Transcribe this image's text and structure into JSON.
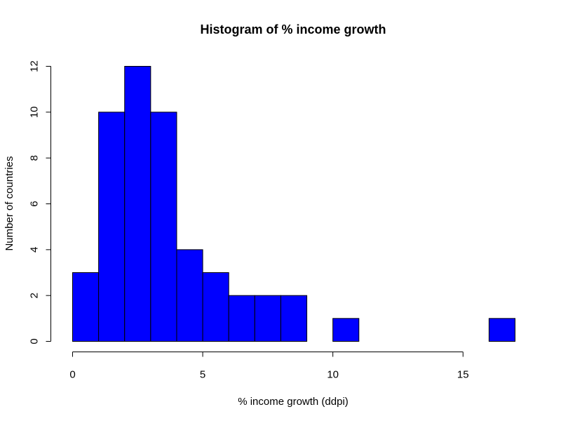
{
  "chart_data": {
    "type": "bar",
    "title": "Histogram of % income growth",
    "xlabel": "% income growth (ddpi)",
    "ylabel": "Number of countries",
    "bar_color": "#0000ff",
    "bin_edges": [
      0,
      1,
      2,
      3,
      4,
      5,
      6,
      7,
      8,
      9,
      10,
      11,
      12,
      13,
      14,
      15,
      16,
      17
    ],
    "counts": [
      3,
      10,
      12,
      10,
      4,
      3,
      2,
      2,
      2,
      0,
      1,
      0,
      0,
      0,
      0,
      0,
      1
    ],
    "xlim": [
      0,
      17
    ],
    "ylim": [
      0,
      12
    ],
    "x_ticks": [
      0,
      5,
      10,
      15
    ],
    "y_ticks": [
      0,
      2,
      4,
      6,
      8,
      10,
      12
    ],
    "grid": false,
    "legend": "none"
  }
}
